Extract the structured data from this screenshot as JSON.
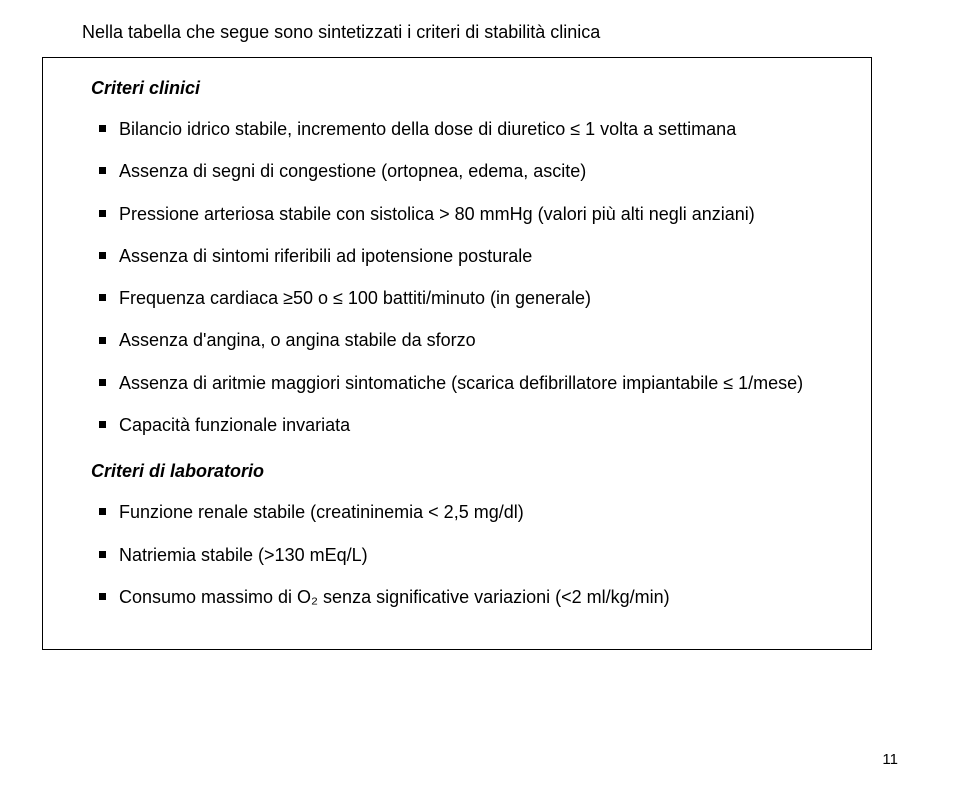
{
  "intro": "Nella tabella che segue sono sintetizzati i criteri di stabilità clinica",
  "clinical": {
    "title": "Criteri clinici",
    "items": [
      "Bilancio idrico stabile, incremento della dose di diuretico ≤ 1 volta a settimana",
      "Assenza di segni di congestione (ortopnea, edema, ascite)",
      "Pressione arteriosa stabile con sistolica > 80 mmHg (valori più alti negli anziani)",
      "Assenza di sintomi riferibili ad ipotensione posturale",
      "Frequenza cardiaca ≥50 o ≤ 100 battiti/minuto (in generale)",
      "Assenza d'angina, o angina stabile da sforzo",
      "Assenza di aritmie maggiori sintomatiche (scarica defibrillatore impiantabile ≤ 1/mese)",
      "Capacità funzionale invariata"
    ]
  },
  "lab": {
    "title": "Criteri di laboratorio",
    "items": [
      "Funzione renale stabile (creatininemia < 2,5 mg/dl)",
      "Natriemia stabile (>130 mEq/L)",
      "Consumo massimo di O₂ senza significative variazioni (<2 ml/kg/min)"
    ]
  },
  "page_number": "11"
}
